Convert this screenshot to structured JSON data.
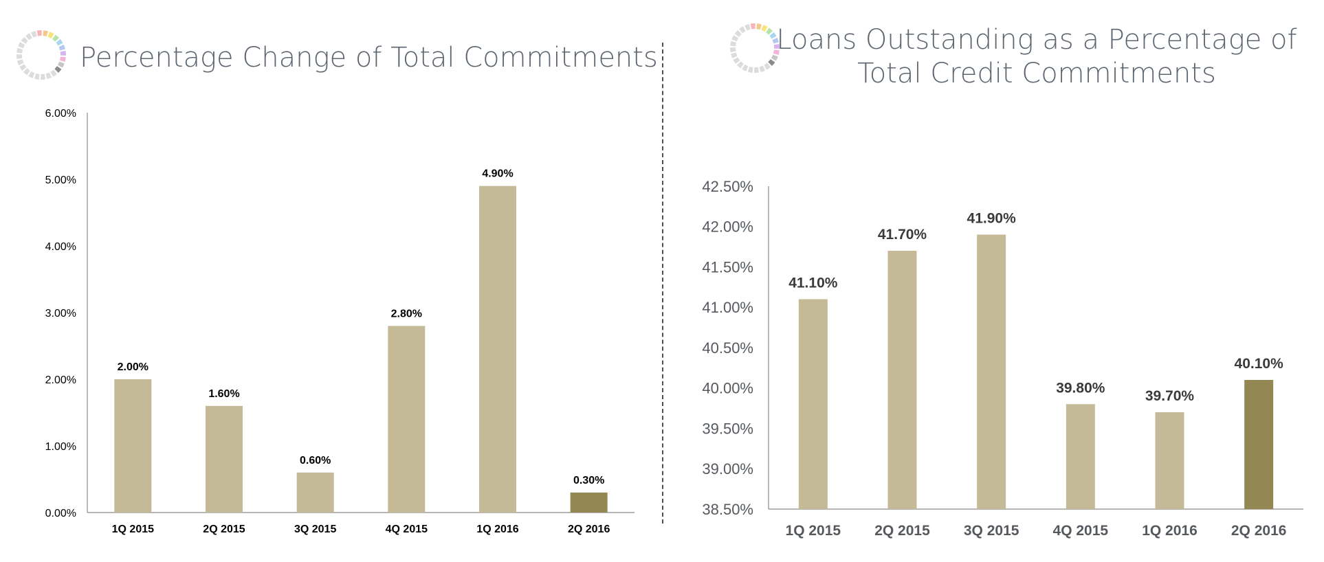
{
  "colors": {
    "bar": "#c4ba98",
    "bar_highlight": "#938854",
    "axis": "#8a8a8a",
    "title": "#5d6670",
    "label_left": "#000000",
    "label_right": "#3a3a3a",
    "tick_right": "#55595e"
  },
  "logo": {
    "icon": "colorful-segmented-ring-icon",
    "segment_colors": [
      "#f8b4b4",
      "#f5c98a",
      "#f7e27c",
      "#b6e3a8",
      "#a9d8ee",
      "#b5c9f0",
      "#d7b4ee",
      "#f3b2d9",
      "#c5c5c5",
      "#8a8a8a"
    ]
  },
  "left": {
    "title": "Percentage Change of Total Commitments"
  },
  "right": {
    "title": "Loans Outstanding as a Percentage of Total Credit Commitments"
  },
  "chart_data": [
    {
      "type": "bar",
      "title": "Percentage Change of Total Commitments",
      "xlabel": "",
      "ylabel": "",
      "categories": [
        "1Q 2015",
        "2Q 2015",
        "3Q 2015",
        "4Q 2015",
        "1Q 2016",
        "2Q 2016"
      ],
      "values": [
        2.0,
        1.6,
        0.6,
        2.8,
        4.9,
        0.3
      ],
      "data_labels": [
        "2.00%",
        "1.60%",
        "0.60%",
        "2.80%",
        "4.90%",
        "0.30%"
      ],
      "highlight_index": 5,
      "ylim": [
        0,
        6
      ],
      "yticks": [
        0,
        1,
        2,
        3,
        4,
        5,
        6
      ],
      "ytick_labels": [
        "0.00%",
        "1.00%",
        "2.00%",
        "3.00%",
        "4.00%",
        "5.00%",
        "6.00%"
      ],
      "grid": false,
      "legend": "none"
    },
    {
      "type": "bar",
      "title": "Loans Outstanding as a Percentage of Total Credit Commitments",
      "xlabel": "",
      "ylabel": "",
      "categories": [
        "1Q 2015",
        "2Q 2015",
        "3Q 2015",
        "4Q 2015",
        "1Q 2016",
        "2Q 2016"
      ],
      "values": [
        41.1,
        41.7,
        41.9,
        39.8,
        39.7,
        40.1
      ],
      "data_labels": [
        "41.10%",
        "41.70%",
        "41.90%",
        "39.80%",
        "39.70%",
        "40.10%"
      ],
      "highlight_index": 5,
      "ylim": [
        38.5,
        42.5
      ],
      "yticks": [
        38.5,
        39.0,
        39.5,
        40.0,
        40.5,
        41.0,
        41.5,
        42.0,
        42.5
      ],
      "ytick_labels": [
        "38.50%",
        "39.00%",
        "39.50%",
        "40.00%",
        "40.50%",
        "41.00%",
        "41.50%",
        "42.00%",
        "42.50%"
      ],
      "grid": false,
      "legend": "none"
    }
  ]
}
